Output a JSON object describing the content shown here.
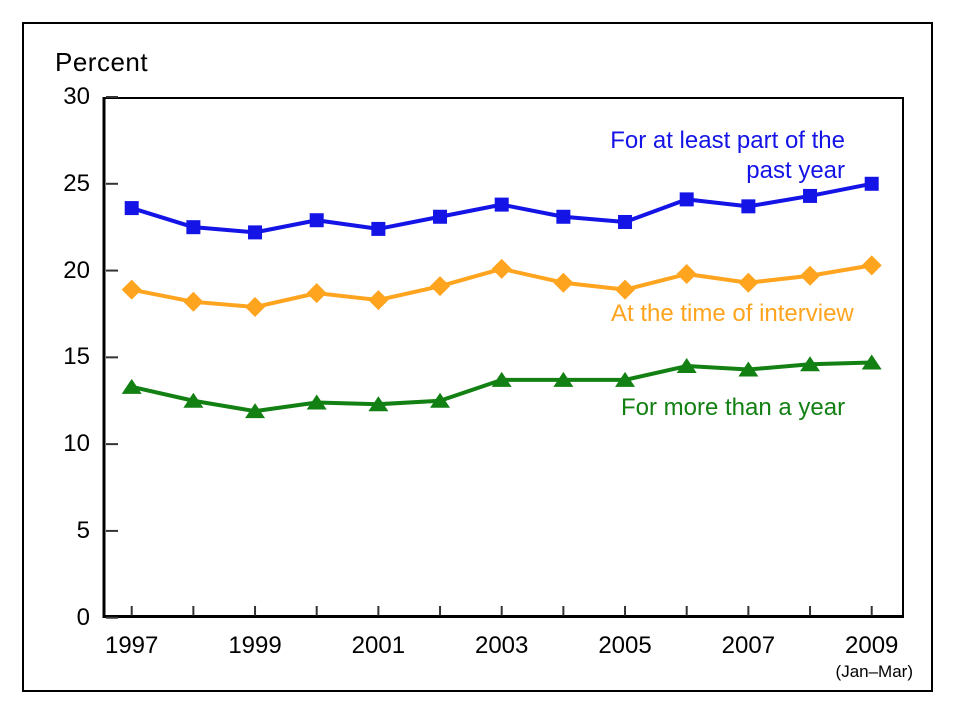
{
  "chart_data": {
    "type": "line",
    "ylabel": "Percent",
    "x": [
      1997,
      1998,
      1999,
      2000,
      2001,
      2002,
      2003,
      2004,
      2005,
      2006,
      2007,
      2008,
      2009
    ],
    "xtick_labels": [
      "1997",
      "1999",
      "2001",
      "2003",
      "2005",
      "2007",
      "2009"
    ],
    "x_note": "(Jan–Mar)",
    "ylim": [
      0,
      30
    ],
    "yticks": [
      0,
      5,
      10,
      15,
      20,
      25,
      30
    ],
    "grid": false,
    "legend": "inline-labels-next-to-lines",
    "series": [
      {
        "name": "For at least part of the past year",
        "label_line1": "For at least part of the",
        "label_line2": "past year",
        "marker": "square",
        "color": "#1414e6",
        "values": [
          23.6,
          22.5,
          22.2,
          22.9,
          22.4,
          23.1,
          23.8,
          23.1,
          22.8,
          24.1,
          23.7,
          24.3,
          25.0
        ]
      },
      {
        "name": "At the time of interview",
        "marker": "diamond",
        "color": "#ffa41e",
        "values": [
          18.9,
          18.2,
          17.9,
          18.7,
          18.3,
          19.1,
          20.1,
          19.3,
          18.9,
          19.8,
          19.3,
          19.7,
          20.3
        ]
      },
      {
        "name": "For more than a year",
        "marker": "triangle",
        "color": "#128012",
        "values": [
          13.3,
          12.5,
          11.9,
          12.4,
          12.3,
          12.5,
          13.7,
          13.7,
          13.7,
          14.5,
          14.3,
          14.6,
          14.7
        ]
      }
    ]
  }
}
